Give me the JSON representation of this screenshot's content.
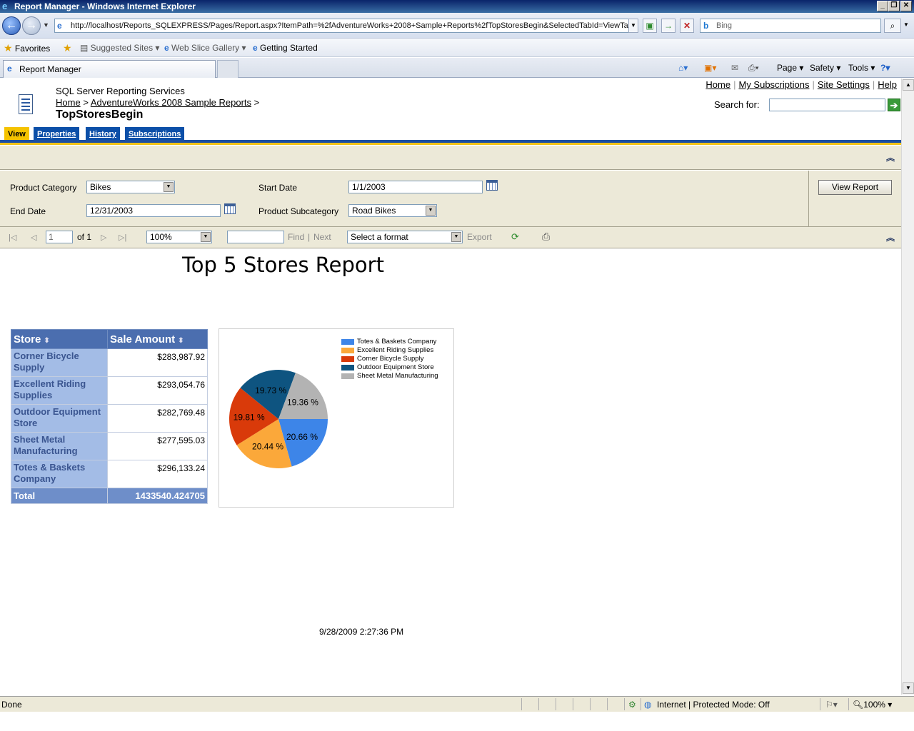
{
  "window": {
    "title": "Report Manager - Windows Internet Explorer",
    "minimize": "_",
    "restore": "❐",
    "close": "✕"
  },
  "browser": {
    "url": "http://localhost/Reports_SQLEXPRESS/Pages/Report.aspx?ItemPath=%2fAdventureWorks+2008+Sample+Reports%2fTopStoresBegin&SelectedTabId=ViewTab",
    "search_placeholder": "Bing",
    "favorites_label": "Favorites",
    "fav_items": [
      "Suggested Sites ▾",
      "Web Slice Gallery ▾",
      "Getting Started"
    ],
    "tab_title": "Report Manager",
    "commands": [
      "Page ▾",
      "Safety ▾",
      "Tools ▾"
    ]
  },
  "rm": {
    "service_name": "SQL Server Reporting Services",
    "crumb_home": "Home",
    "crumb_sep": ">",
    "crumb_folder": "AdventureWorks 2008 Sample Reports",
    "report_name": "TopStoresBegin",
    "links": [
      "Home",
      "My Subscriptions",
      "Site Settings",
      "Help"
    ],
    "search_label": "Search for:",
    "tabs": [
      "View",
      "Properties",
      "History",
      "Subscriptions"
    ]
  },
  "params": {
    "product_category_label": "Product Category",
    "product_category_value": "Bikes",
    "start_date_label": "Start Date",
    "start_date_value": "1/1/2003",
    "end_date_label": "End Date",
    "end_date_value": "12/31/2003",
    "subcategory_label": "Product Subcategory",
    "subcategory_value": "Road Bikes",
    "view_report": "View Report"
  },
  "toolbar": {
    "page_value": "1",
    "of_label": "of 1",
    "zoom": "100%",
    "find_label": "Find",
    "separator": "|",
    "next_label": "Next",
    "format_placeholder": "Select a format",
    "export_label": "Export"
  },
  "report": {
    "title": "Top 5 Stores Report",
    "col_store": "Store",
    "col_amount": "Sale Amount",
    "rows": [
      {
        "store": "Corner Bicycle Supply",
        "amount": "$283,987.92"
      },
      {
        "store": "Excellent Riding Supplies",
        "amount": "$293,054.76"
      },
      {
        "store": "Outdoor Equipment Store",
        "amount": "$282,769.48"
      },
      {
        "store": "Sheet Metal Manufacturing",
        "amount": "$277,595.03"
      },
      {
        "store": "Totes & Baskets Company",
        "amount": "$296,133.24"
      }
    ],
    "total_label": "Total",
    "total_value": "1433540.424705",
    "timestamp": "9/28/2009 2:27:36 PM"
  },
  "chart_data": {
    "type": "pie",
    "categories": [
      "Totes & Baskets Company",
      "Excellent Riding Supplies",
      "Corner Bicycle Supply",
      "Outdoor Equipment Store",
      "Sheet Metal Manufacturing"
    ],
    "values": [
      20.66,
      20.44,
      19.81,
      19.73,
      19.36
    ],
    "labels": [
      "20.66 %",
      "20.44 %",
      "19.81 %",
      "19.73 %",
      "19.36 %"
    ],
    "colors": [
      "#3d85e8",
      "#fba83a",
      "#d93a0a",
      "#0e5480",
      "#b3b3b3"
    ],
    "legend_position": "top-right"
  },
  "status": {
    "left": "Done",
    "zone": "Internet | Protected Mode: Off",
    "zoom": "100%"
  }
}
